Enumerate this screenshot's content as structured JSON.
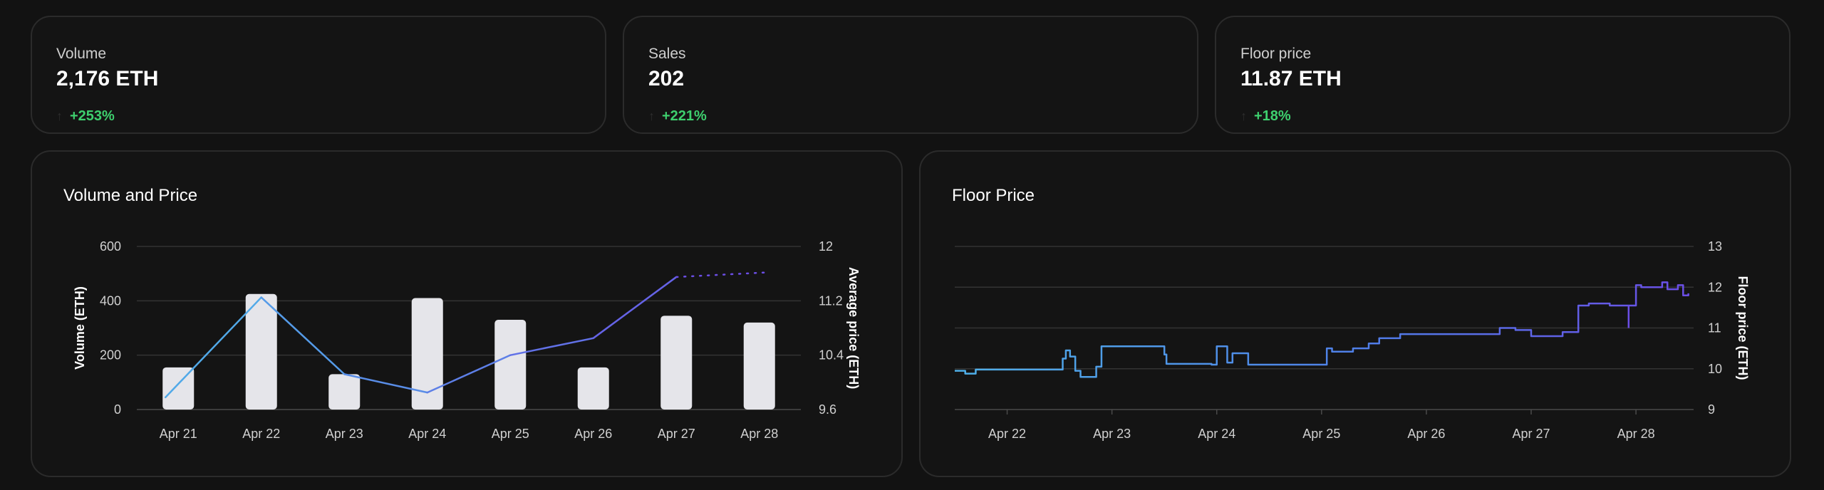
{
  "stats": [
    {
      "label": "Volume",
      "value": "2,176 ETH",
      "change": "+253%"
    },
    {
      "label": "Sales",
      "value": "202",
      "change": "+221%"
    },
    {
      "label": "Floor price",
      "value": "11.87 ETH",
      "change": "+18%"
    }
  ],
  "icons": {
    "up_arrow": "arrow-up-icon"
  },
  "colors": {
    "positive": "#3ecf6e",
    "bar": "#e5e5ea",
    "line_blue": "#4fb0e8",
    "line_purple": "#6b4ee6"
  },
  "chart_data": [
    {
      "type": "bar",
      "title": "Volume and Price",
      "categories": [
        "Apr 21",
        "Apr 22",
        "Apr 23",
        "Apr 24",
        "Apr 25",
        "Apr 26",
        "Apr 27",
        "Apr 28"
      ],
      "ylabel": "Volume (ETH)",
      "ylim": [
        0,
        600
      ],
      "yticks": [
        "0",
        "200",
        "400",
        "600"
      ],
      "y2label": "Average price (ETH)",
      "y2lim": [
        9.6,
        12
      ],
      "y2ticks": [
        "9.6",
        "10.4",
        "11.2",
        "12"
      ],
      "grid": true,
      "series": [
        {
          "type": "bar",
          "axis": "left",
          "values": [
            155,
            425,
            130,
            410,
            330,
            155,
            345,
            320
          ]
        },
        {
          "type": "line",
          "axis": "right",
          "values": [
            9.78,
            11.25,
            10.12,
            9.85,
            10.4,
            10.65,
            11.55,
            null
          ],
          "projected": [
            null,
            null,
            null,
            null,
            null,
            null,
            11.55,
            11.62
          ]
        }
      ]
    },
    {
      "type": "line",
      "title": "Floor Price",
      "categories": [
        "Apr 22",
        "Apr 23",
        "Apr 24",
        "Apr 25",
        "Apr 26",
        "Apr 27",
        "Apr 28"
      ],
      "ylabel": "Floor price (ETH)",
      "ylim": [
        9,
        13
      ],
      "yticks": [
        "9",
        "10",
        "11",
        "12",
        "13"
      ],
      "grid": true,
      "series": [
        {
          "name": "",
          "x": [
            21.5,
            21.55,
            21.6,
            21.7,
            22.5,
            22.53,
            22.56,
            22.6,
            22.65,
            22.7,
            22.85,
            22.9,
            22.95,
            23.05,
            23.45,
            23.5,
            23.52,
            23.6,
            23.95,
            24.0,
            24.1,
            24.15,
            24.3,
            25.0,
            25.05,
            25.1,
            25.3,
            25.45,
            25.55,
            25.75,
            25.9,
            26.7,
            26.85,
            27.0,
            27.3,
            27.45,
            27.55,
            27.75,
            27.85,
            28.0,
            28.05,
            28.25,
            28.3,
            28.4,
            28.45,
            28.5
          ],
          "y": [
            9.95,
            9.95,
            9.88,
            9.98,
            9.98,
            10.25,
            10.45,
            10.3,
            9.95,
            9.8,
            10.05,
            10.55,
            10.55,
            10.55,
            10.55,
            10.35,
            10.12,
            10.12,
            10.1,
            10.55,
            10.15,
            10.38,
            10.1,
            10.1,
            10.5,
            10.42,
            10.5,
            10.62,
            10.75,
            10.85,
            10.85,
            11.0,
            10.95,
            10.8,
            10.9,
            11.55,
            11.6,
            11.55,
            11.55,
            12.05,
            12.0,
            12.12,
            11.95,
            12.05,
            11.8,
            11.85
          ]
        }
      ]
    }
  ]
}
